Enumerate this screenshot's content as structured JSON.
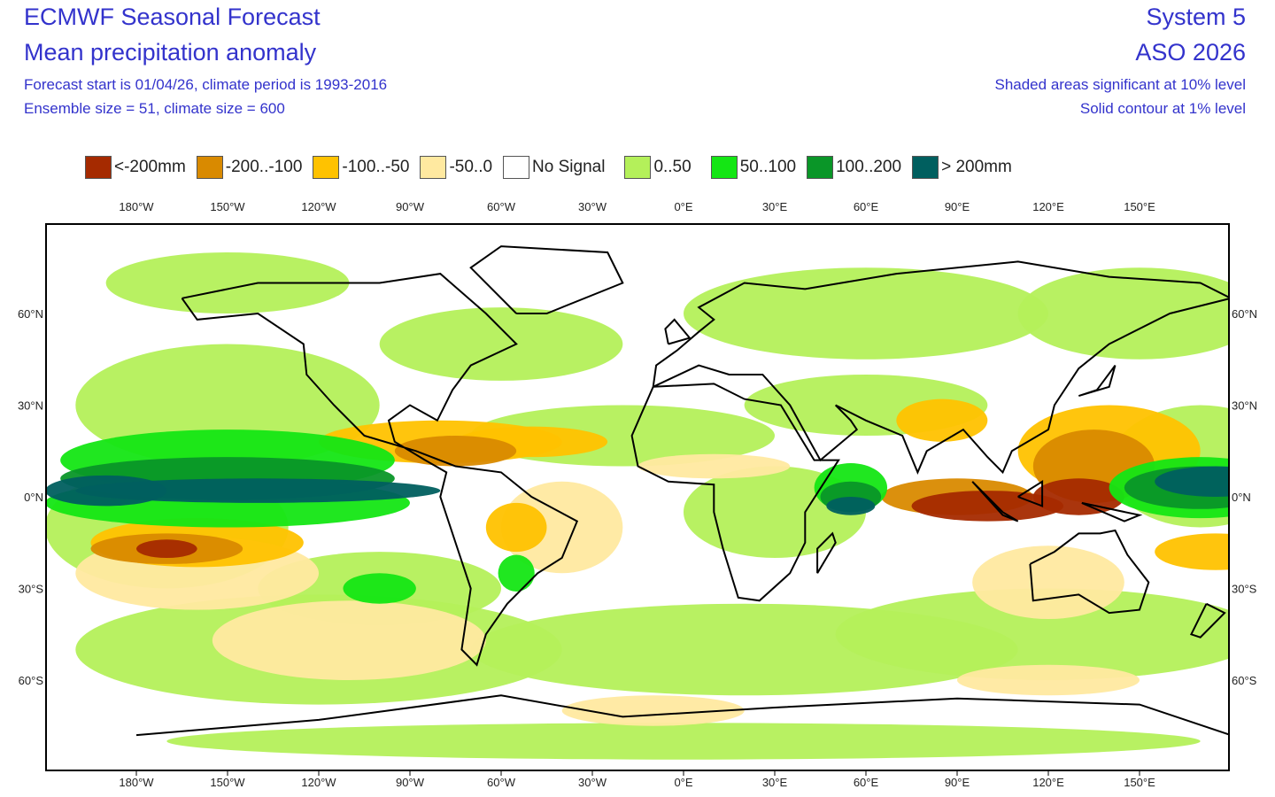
{
  "header": {
    "title": "ECMWF Seasonal Forecast",
    "subtitle": "Mean precipitation anomaly",
    "forecast_info": "Forecast start is 01/04/26, climate period is 1993-2016",
    "ensemble_info": "Ensemble size = 51, climate size = 600",
    "system": "System 5",
    "period": "ASO 2026",
    "significance_note": "Shaded areas significant at 10% level",
    "contour_note": "Solid contour at 1% level"
  },
  "legend": [
    {
      "label": "<-200mm",
      "color": "#a52a00"
    },
    {
      "label": "-200..-100",
      "color": "#d98a00"
    },
    {
      "label": "-100..-50",
      "color": "#ffc200"
    },
    {
      "label": "-50..0",
      "color": "#ffe9a0"
    },
    {
      "label": "No Signal",
      "color": "#ffffff"
    },
    {
      "label": "0..50",
      "color": "#b4f05a"
    },
    {
      "label": "50..100",
      "color": "#14e614"
    },
    {
      "label": "100..200",
      "color": "#0a9628"
    },
    {
      "label": "> 200mm",
      "color": "#005f5f"
    }
  ],
  "axes": {
    "lon_ticks": [
      "180°W",
      "150°W",
      "120°W",
      "90°W",
      "60°W",
      "30°W",
      "0°E",
      "30°E",
      "60°E",
      "90°E",
      "120°E",
      "150°E"
    ],
    "lat_ticks": [
      "60°N",
      "30°N",
      "0°N",
      "30°S",
      "60°S"
    ]
  }
}
